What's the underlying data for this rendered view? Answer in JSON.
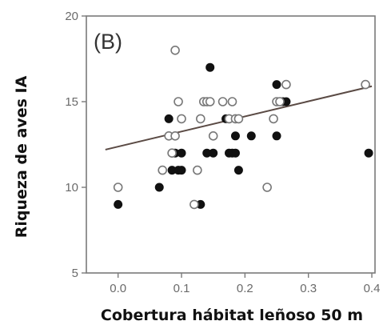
{
  "chart_data": {
    "type": "scatter",
    "panel_label": "(B)",
    "xlabel": "Cobertura hábitat leñoso 50 m",
    "ylabel": "Riqueza de aves IA",
    "xlim": [
      -0.05,
      0.405
    ],
    "ylim": [
      5,
      20
    ],
    "x_ticks": [
      0.0,
      0.1,
      0.2,
      0.3,
      0.4
    ],
    "x_tick_labels": [
      "0.0",
      "0.1",
      "0.2",
      "0.3",
      "0.4"
    ],
    "y_ticks": [
      5,
      10,
      15,
      20
    ],
    "y_tick_labels": [
      "5",
      "10",
      "15",
      "20"
    ],
    "grid": false,
    "legend": "none",
    "series": [
      {
        "marker": "filled-circle",
        "color": "#111111",
        "points": [
          [
            0.0,
            9
          ],
          [
            0.065,
            10
          ],
          [
            0.08,
            14
          ],
          [
            0.085,
            11
          ],
          [
            0.09,
            12
          ],
          [
            0.095,
            11
          ],
          [
            0.1,
            12
          ],
          [
            0.1,
            11
          ],
          [
            0.13,
            9
          ],
          [
            0.14,
            12
          ],
          [
            0.14,
            15
          ],
          [
            0.145,
            17
          ],
          [
            0.15,
            12
          ],
          [
            0.17,
            14
          ],
          [
            0.175,
            12
          ],
          [
            0.18,
            12
          ],
          [
            0.185,
            13
          ],
          [
            0.185,
            12
          ],
          [
            0.19,
            11
          ],
          [
            0.21,
            13
          ],
          [
            0.25,
            16
          ],
          [
            0.25,
            13
          ],
          [
            0.26,
            15
          ],
          [
            0.265,
            15
          ],
          [
            0.395,
            12
          ]
        ]
      },
      {
        "marker": "open-circle",
        "color": "#777777",
        "points": [
          [
            0.0,
            10
          ],
          [
            0.07,
            11
          ],
          [
            0.08,
            13
          ],
          [
            0.085,
            12
          ],
          [
            0.09,
            13
          ],
          [
            0.09,
            18
          ],
          [
            0.095,
            15
          ],
          [
            0.1,
            14
          ],
          [
            0.12,
            9
          ],
          [
            0.125,
            11
          ],
          [
            0.13,
            14
          ],
          [
            0.135,
            15
          ],
          [
            0.14,
            15
          ],
          [
            0.145,
            15
          ],
          [
            0.15,
            13
          ],
          [
            0.165,
            15
          ],
          [
            0.175,
            14
          ],
          [
            0.18,
            15
          ],
          [
            0.185,
            14
          ],
          [
            0.19,
            14
          ],
          [
            0.235,
            10
          ],
          [
            0.245,
            14
          ],
          [
            0.25,
            15
          ],
          [
            0.255,
            15
          ],
          [
            0.265,
            16
          ],
          [
            0.39,
            16
          ]
        ]
      }
    ],
    "trend_line": {
      "x": [
        -0.02,
        0.4
      ],
      "y": [
        12.2,
        15.9
      ],
      "color": "#5a4a44"
    }
  }
}
